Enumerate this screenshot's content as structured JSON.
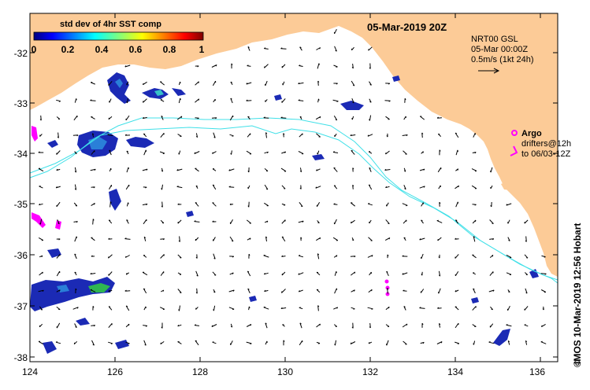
{
  "map": {
    "date_label": "05-Mar-2019 20Z",
    "colorbar": {
      "title": "std dev of 4hr SST comp",
      "ticks": [
        "0",
        "0.2",
        "0.4",
        "0.6",
        "0.8",
        "1"
      ]
    },
    "current_legend": {
      "line1": "NRT00 GSL",
      "line2": "05-Mar 00:00Z",
      "line3": "0.5m/s (1kt 24h)"
    },
    "argo_label": "Argo",
    "drifters_line1": "drifters@12h",
    "drifters_line2": "to 06/03-12Z",
    "credit": "IMOS 10-Mar-2019 12:56 Hobart",
    "copyright_symbol": "©",
    "lat_ticks": [
      "-32",
      "-33",
      "-34",
      "-35",
      "-36",
      "-37",
      "-38"
    ],
    "lon_ticks": [
      "124",
      "126",
      "128",
      "130",
      "132",
      "134",
      "136"
    ],
    "colors": {
      "land": "#fccb97",
      "contour": "#40e0e8",
      "argo": "#ff00ff",
      "patch_dark": "#1b2ab5",
      "patch_mid": "#2a7fd8",
      "patch_light": "#36c0c8",
      "patch_green": "#2fb552"
    }
  }
}
